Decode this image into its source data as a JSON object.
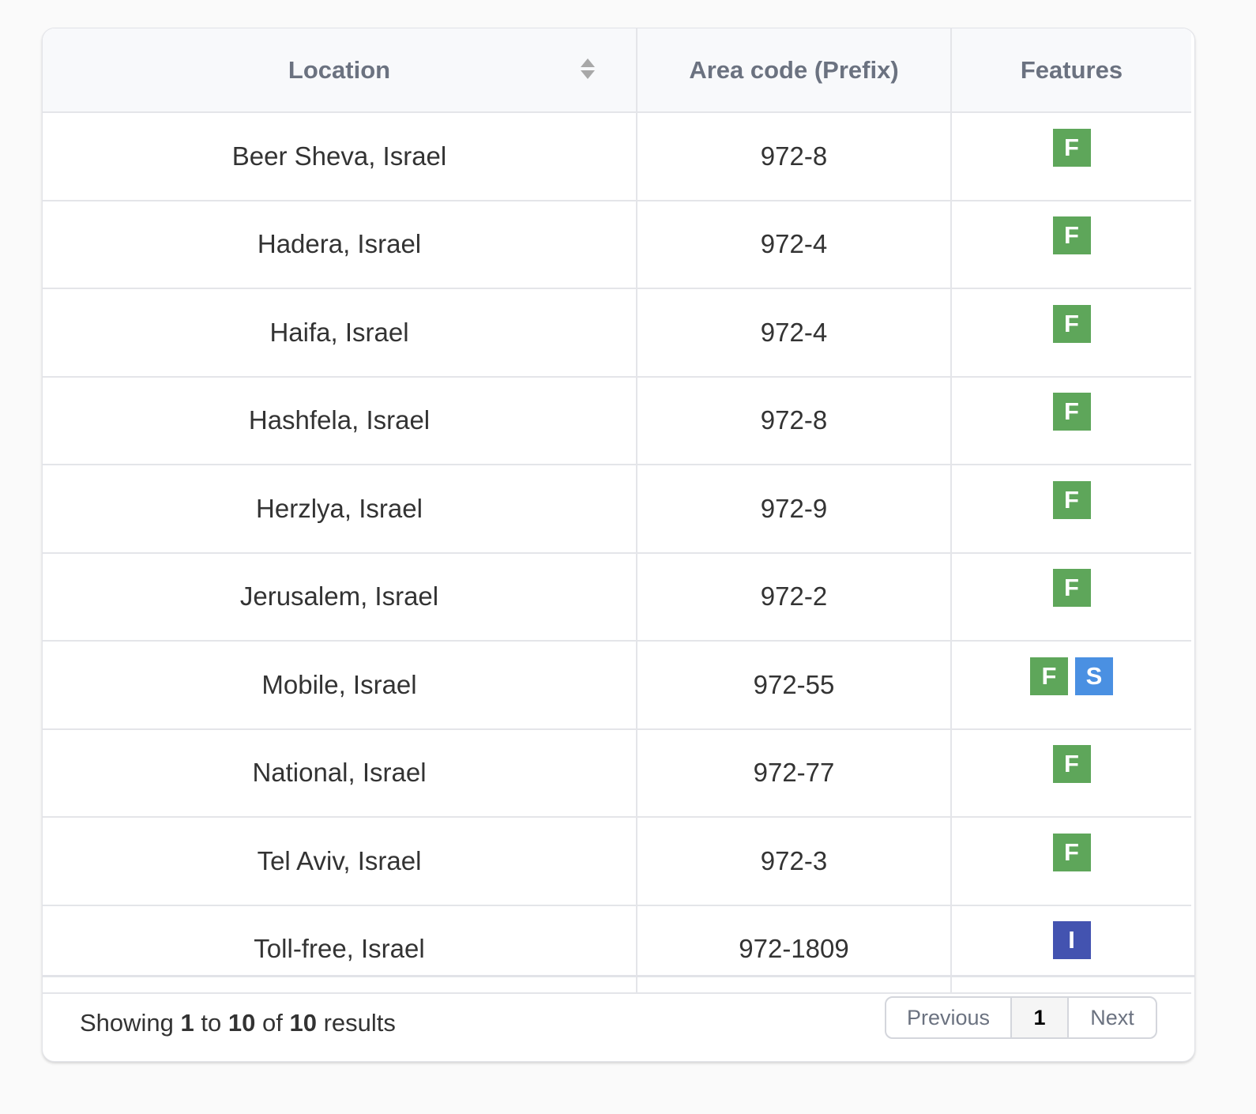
{
  "table": {
    "headers": {
      "location": "Location",
      "area_code": "Area code (Prefix)",
      "features": "Features"
    },
    "rows": [
      {
        "location": "Beer Sheva, Israel",
        "area_code": "972-8",
        "features": [
          "F"
        ]
      },
      {
        "location": "Hadera, Israel",
        "area_code": "972-4",
        "features": [
          "F"
        ]
      },
      {
        "location": "Haifa, Israel",
        "area_code": "972-4",
        "features": [
          "F"
        ]
      },
      {
        "location": "Hashfela, Israel",
        "area_code": "972-8",
        "features": [
          "F"
        ]
      },
      {
        "location": "Herzlya, Israel",
        "area_code": "972-9",
        "features": [
          "F"
        ]
      },
      {
        "location": "Jerusalem, Israel",
        "area_code": "972-2",
        "features": [
          "F"
        ]
      },
      {
        "location": "Mobile, Israel",
        "area_code": "972-55",
        "features": [
          "F",
          "S"
        ]
      },
      {
        "location": "National, Israel",
        "area_code": "972-77",
        "features": [
          "F"
        ]
      },
      {
        "location": "Tel Aviv, Israel",
        "area_code": "972-3",
        "features": [
          "F"
        ]
      },
      {
        "location": "Toll-free, Israel",
        "area_code": "972-1809",
        "features": [
          "I"
        ]
      }
    ]
  },
  "badge_colors": {
    "F": "#5ea65a",
    "S": "#4a90e2",
    "I": "#4353b0"
  },
  "footer": {
    "showing_prefix": "Showing",
    "from": "1",
    "to_word": "to",
    "to": "10",
    "of_word": "of",
    "total": "10",
    "results_word": "results",
    "previous_label": "Previous",
    "current_page": "1",
    "next_label": "Next"
  }
}
